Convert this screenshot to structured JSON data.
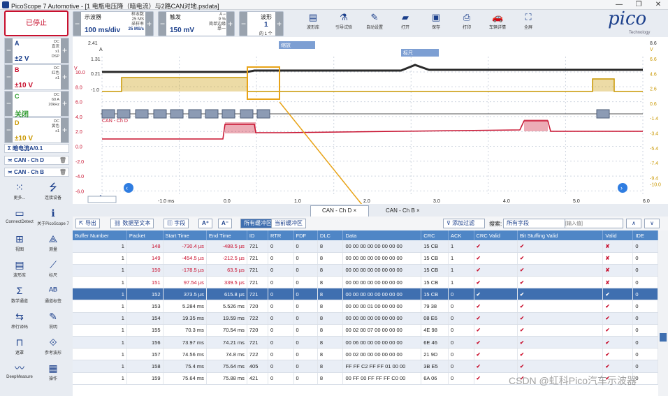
{
  "window": {
    "title": "PicoScope 7 Automotive - [1 电瓶电压降（暗电流）与2路CAN对地.psdata]",
    "min": "—",
    "max": "❐",
    "close": "✕"
  },
  "toolbar": {
    "stop_label": "已停止",
    "scope": {
      "label": "示波器",
      "value": "100 ms/div",
      "samples_label": "样本数",
      "samples": "25 MS",
      "rate_label": "采样率",
      "rate": "25 MS/s"
    },
    "trigger": {
      "label": "触发",
      "value": "150 mV",
      "mode": "简单边缘",
      "type": "单一",
      "pct": "9 %",
      "ch": "A"
    },
    "waveform": {
      "label": "波形",
      "value": "1",
      "sub": "的 1 个"
    },
    "buttons": [
      {
        "label": "波形库",
        "icon": "library-icon"
      },
      {
        "label": "引导试验",
        "icon": "guided-test-icon"
      },
      {
        "label": "自动设置",
        "icon": "wand-icon"
      },
      {
        "label": "打开",
        "icon": "folder-icon"
      },
      {
        "label": "保存",
        "icon": "save-icon"
      },
      {
        "label": "打印",
        "icon": "print-icon"
      },
      {
        "label": "车辆详情",
        "icon": "car-icon"
      },
      {
        "label": "全屏",
        "icon": "fullscreen-icon"
      }
    ],
    "logo": "pico",
    "logo_sub": "Technology"
  },
  "channels": [
    {
      "letter": "A",
      "value": "±2 V",
      "info": [
        "DC",
        "直流",
        "x1",
        "DSP"
      ],
      "color": "#1b3f8b"
    },
    {
      "letter": "B",
      "value": "±10 V",
      "info": [
        "DC",
        "红色",
        "x1"
      ],
      "color": "#c8102e"
    },
    {
      "letter": "C",
      "value": "关闭",
      "info": [
        "DC",
        "60 A",
        "20kHz"
      ],
      "color": "#2e9a2e"
    },
    {
      "letter": "D",
      "value": "±10 V",
      "info": [
        "DC",
        "黄色",
        "x1"
      ],
      "color": "#c99700"
    }
  ],
  "math": [
    {
      "label": "暗电流A/0.1"
    },
    {
      "label": "CAN - Ch D"
    },
    {
      "label": "CAN - Ch B"
    }
  ],
  "side_icons": [
    {
      "label": "更多...",
      "icon": "grid-icon"
    },
    {
      "label": "连接设备",
      "icon": "usb-icon"
    },
    {
      "label": "ConnectDetect",
      "icon": "connectdetect-icon"
    },
    {
      "label": "关于PicoScope 7",
      "icon": "info-icon"
    },
    {
      "label": "视图",
      "icon": "view-icon"
    },
    {
      "label": "测量",
      "icon": "measure-icon"
    },
    {
      "label": "波形库",
      "icon": "library-icon"
    },
    {
      "label": "标尺",
      "icon": "ruler-icon"
    },
    {
      "label": "数学通道",
      "icon": "sigma-icon"
    },
    {
      "label": "通道标签",
      "icon": "abcd-icon"
    },
    {
      "label": "串行译码",
      "icon": "serial-icon"
    },
    {
      "label": "说明",
      "icon": "notes-icon"
    },
    {
      "label": "遮罩",
      "icon": "mask-icon"
    },
    {
      "label": "参考波形",
      "icon": "reference-icon"
    },
    {
      "label": "DeepMeasure",
      "icon": "deepmeasure-icon"
    },
    {
      "label": "操作",
      "icon": "actions-icon"
    }
  ],
  "scope": {
    "left_axis": [
      "10.0",
      "8.0",
      "6.0",
      "4.0",
      "2.0",
      "0.0",
      "-2.0",
      "-4.0",
      "-6.0"
    ],
    "right_axis": [
      "6.6",
      "4.6",
      "2.6",
      "0.6",
      "-1.4",
      "-3.4",
      "-5.4",
      "-7.4",
      "-9.4",
      "-10.0"
    ],
    "top_left": "2.41",
    "top_right": "8.6",
    "left_unit": "A",
    "right_unit": "V",
    "left_unit2": "V",
    "marker_a": "1.31",
    "marker_b": "0.21",
    "marker_d": "-1.0",
    "x_axis": [
      "-1.0 ms",
      "0.0",
      "1.0",
      "2.0",
      "3.0",
      "4.0",
      "5.0",
      "6.0"
    ],
    "zoom_label": "缩放",
    "ruler_label": "标尺",
    "can_label": "CAN - Ch D"
  },
  "tabs": [
    {
      "label": "CAN - Ch D"
    },
    {
      "label": "CAN - Ch B"
    }
  ],
  "tools": {
    "export": "导出",
    "data_to_text": "数据至文本",
    "fields": "字段",
    "all_buffers": "所有缓冲区",
    "current_buffer": "当前缓冲区",
    "add_filter": "添加过滤",
    "search_label": "搜索:",
    "search_value": "所有字段",
    "search_placeholder": "[输入值]"
  },
  "table": {
    "headers": [
      "Buffer Number",
      "Packet",
      "Start Time",
      "End Time",
      "ID",
      "RTR",
      "FDF",
      "DLC",
      "Data",
      "CRC",
      "ACK",
      "CRC Valid",
      "Bit Stuffing Valid",
      "Valid",
      "IDE"
    ],
    "rows": [
      [
        "1",
        "148",
        "-730.4 µs",
        "-488.5 µs",
        "721",
        "0",
        "0",
        "8",
        "00 00 00 00 00 00 00 00",
        "15 CB",
        "1",
        "✔",
        "✔",
        "✘",
        "0"
      ],
      [
        "1",
        "149",
        "-454.5 µs",
        "-212.5 µs",
        "721",
        "0",
        "0",
        "8",
        "00 00 00 00 00 00 00 00",
        "15 CB",
        "1",
        "✔",
        "✔",
        "✘",
        "0"
      ],
      [
        "1",
        "150",
        "-178.5 µs",
        "63.5 µs",
        "721",
        "0",
        "0",
        "8",
        "00 00 00 00 00 00 00 00",
        "15 CB",
        "1",
        "✔",
        "✔",
        "✘",
        "0"
      ],
      [
        "1",
        "151",
        "97.54 µs",
        "339.5 µs",
        "721",
        "0",
        "0",
        "8",
        "00 00 00 00 00 00 00 00",
        "15 CB",
        "1",
        "✔",
        "✔",
        "✘",
        "0"
      ],
      [
        "1",
        "152",
        "373.5 µs",
        "615.8 µs",
        "721",
        "0",
        "0",
        "8",
        "00 00 00 00 00 00 00 00",
        "15 CB",
        "0",
        "✔",
        "✔",
        "✔",
        "0"
      ],
      [
        "1",
        "153",
        "5.284 ms",
        "5.526 ms",
        "720",
        "0",
        "0",
        "8",
        "00 00 00 01 00 00 00 00",
        "79 38",
        "0",
        "✔",
        "✔",
        "✔",
        "0"
      ],
      [
        "1",
        "154",
        "19.35 ms",
        "19.59 ms",
        "722",
        "0",
        "0",
        "8",
        "00 00 00 00 00 00 00 00",
        "08 E6",
        "0",
        "✔",
        "✔",
        "✔",
        "0"
      ],
      [
        "1",
        "155",
        "70.3 ms",
        "70.54 ms",
        "720",
        "0",
        "0",
        "8",
        "00 02 00 07 00 00 00 00",
        "4E 98",
        "0",
        "✔",
        "✔",
        "✔",
        "0"
      ],
      [
        "1",
        "156",
        "73.97 ms",
        "74.21 ms",
        "721",
        "0",
        "0",
        "8",
        "00 06 00 00 00 00 00 00",
        "6E 46",
        "0",
        "✔",
        "✔",
        "✔",
        "0"
      ],
      [
        "1",
        "157",
        "74.56 ms",
        "74.8 ms",
        "722",
        "0",
        "0",
        "8",
        "00 02 00 00 00 00 00 00",
        "21 9D",
        "0",
        "✔",
        "✔",
        "✔",
        "0"
      ],
      [
        "1",
        "158",
        "75.4 ms",
        "75.64 ms",
        "405",
        "0",
        "0",
        "8",
        "FF FF C2 FF FF 01 00 00",
        "3B E5",
        "0",
        "✔",
        "✔",
        "✔",
        "0"
      ],
      [
        "1",
        "159",
        "75.64 ms",
        "75.88 ms",
        "421",
        "0",
        "0",
        "8",
        "00 FF 00 FF FF FF C0 00",
        "6A 06",
        "0",
        "✔",
        "✔",
        "✔",
        "0"
      ]
    ]
  },
  "watermark": "CSDN @虹科Pico汽车示波器"
}
